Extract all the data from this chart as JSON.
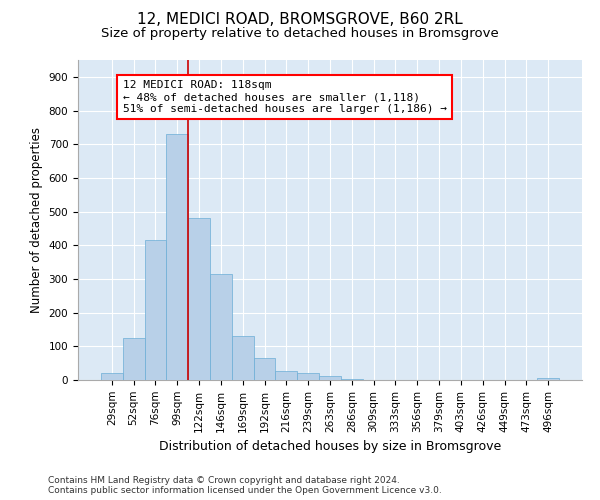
{
  "title1": "12, MEDICI ROAD, BROMSGROVE, B60 2RL",
  "title2": "Size of property relative to detached houses in Bromsgrove",
  "xlabel": "Distribution of detached houses by size in Bromsgrove",
  "ylabel": "Number of detached properties",
  "categories": [
    "29sqm",
    "52sqm",
    "76sqm",
    "99sqm",
    "122sqm",
    "146sqm",
    "169sqm",
    "192sqm",
    "216sqm",
    "239sqm",
    "263sqm",
    "286sqm",
    "309sqm",
    "333sqm",
    "356sqm",
    "379sqm",
    "403sqm",
    "426sqm",
    "449sqm",
    "473sqm",
    "496sqm"
  ],
  "bar_heights": [
    20,
    125,
    415,
    730,
    480,
    315,
    130,
    65,
    28,
    22,
    12,
    3,
    0,
    0,
    0,
    0,
    0,
    0,
    0,
    0,
    5
  ],
  "bar_color": "#b8d0e8",
  "bar_edge_color": "#6baed6",
  "bg_color": "#dce9f5",
  "vline_pos": 3.5,
  "vline_color": "#cc0000",
  "ann_line1": "12 MEDICI ROAD: 118sqm",
  "ann_line2": "← 48% of detached houses are smaller (1,118)",
  "ann_line3": "51% of semi-detached houses are larger (1,186) →",
  "ylim_max": 950,
  "yticks": [
    0,
    100,
    200,
    300,
    400,
    500,
    600,
    700,
    800,
    900
  ],
  "footnote_line1": "Contains HM Land Registry data © Crown copyright and database right 2024.",
  "footnote_line2": "Contains public sector information licensed under the Open Government Licence v3.0.",
  "title1_fontsize": 11,
  "title2_fontsize": 9.5,
  "ylabel_fontsize": 8.5,
  "xlabel_fontsize": 9,
  "tick_fontsize": 7.5,
  "ann_fontsize": 8,
  "footnote_fontsize": 6.5
}
